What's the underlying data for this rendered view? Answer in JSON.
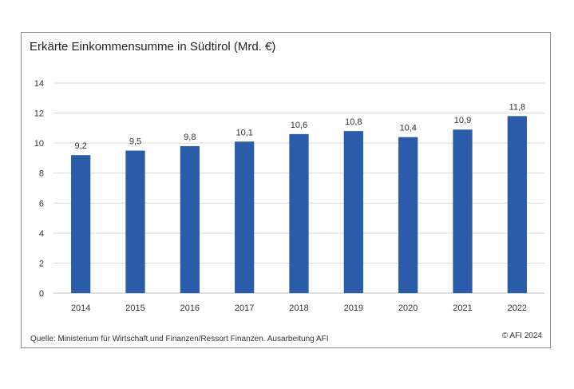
{
  "chart_data": {
    "type": "bar",
    "title": "Erkärte Einkommensumme in Südtirol (Mrd. €)",
    "categories": [
      "2014",
      "2015",
      "2016",
      "2017",
      "2018",
      "2019",
      "2020",
      "2021",
      "2022"
    ],
    "values": [
      9.2,
      9.5,
      9.8,
      10.1,
      10.6,
      10.8,
      10.4,
      10.9,
      11.8
    ],
    "value_labels": [
      "9,2",
      "9,5",
      "9,8",
      "10,1",
      "10,6",
      "10,8",
      "10,4",
      "10,9",
      "11,8"
    ],
    "ylim": [
      0,
      14
    ],
    "yticks": [
      0,
      2,
      4,
      6,
      8,
      10,
      12,
      14
    ],
    "grid": true,
    "xlabel": "",
    "ylabel": ""
  },
  "colors": {
    "bar": "#2a5caa",
    "grid": "#d9d9d9",
    "axis": "#bfbfbf"
  },
  "footer": {
    "source": "Quelle: Ministerium für Wirtschaft und Finanzen/Ressort Finanzen. Ausarbeitung AFI",
    "copyright": "© AFI 2024"
  }
}
